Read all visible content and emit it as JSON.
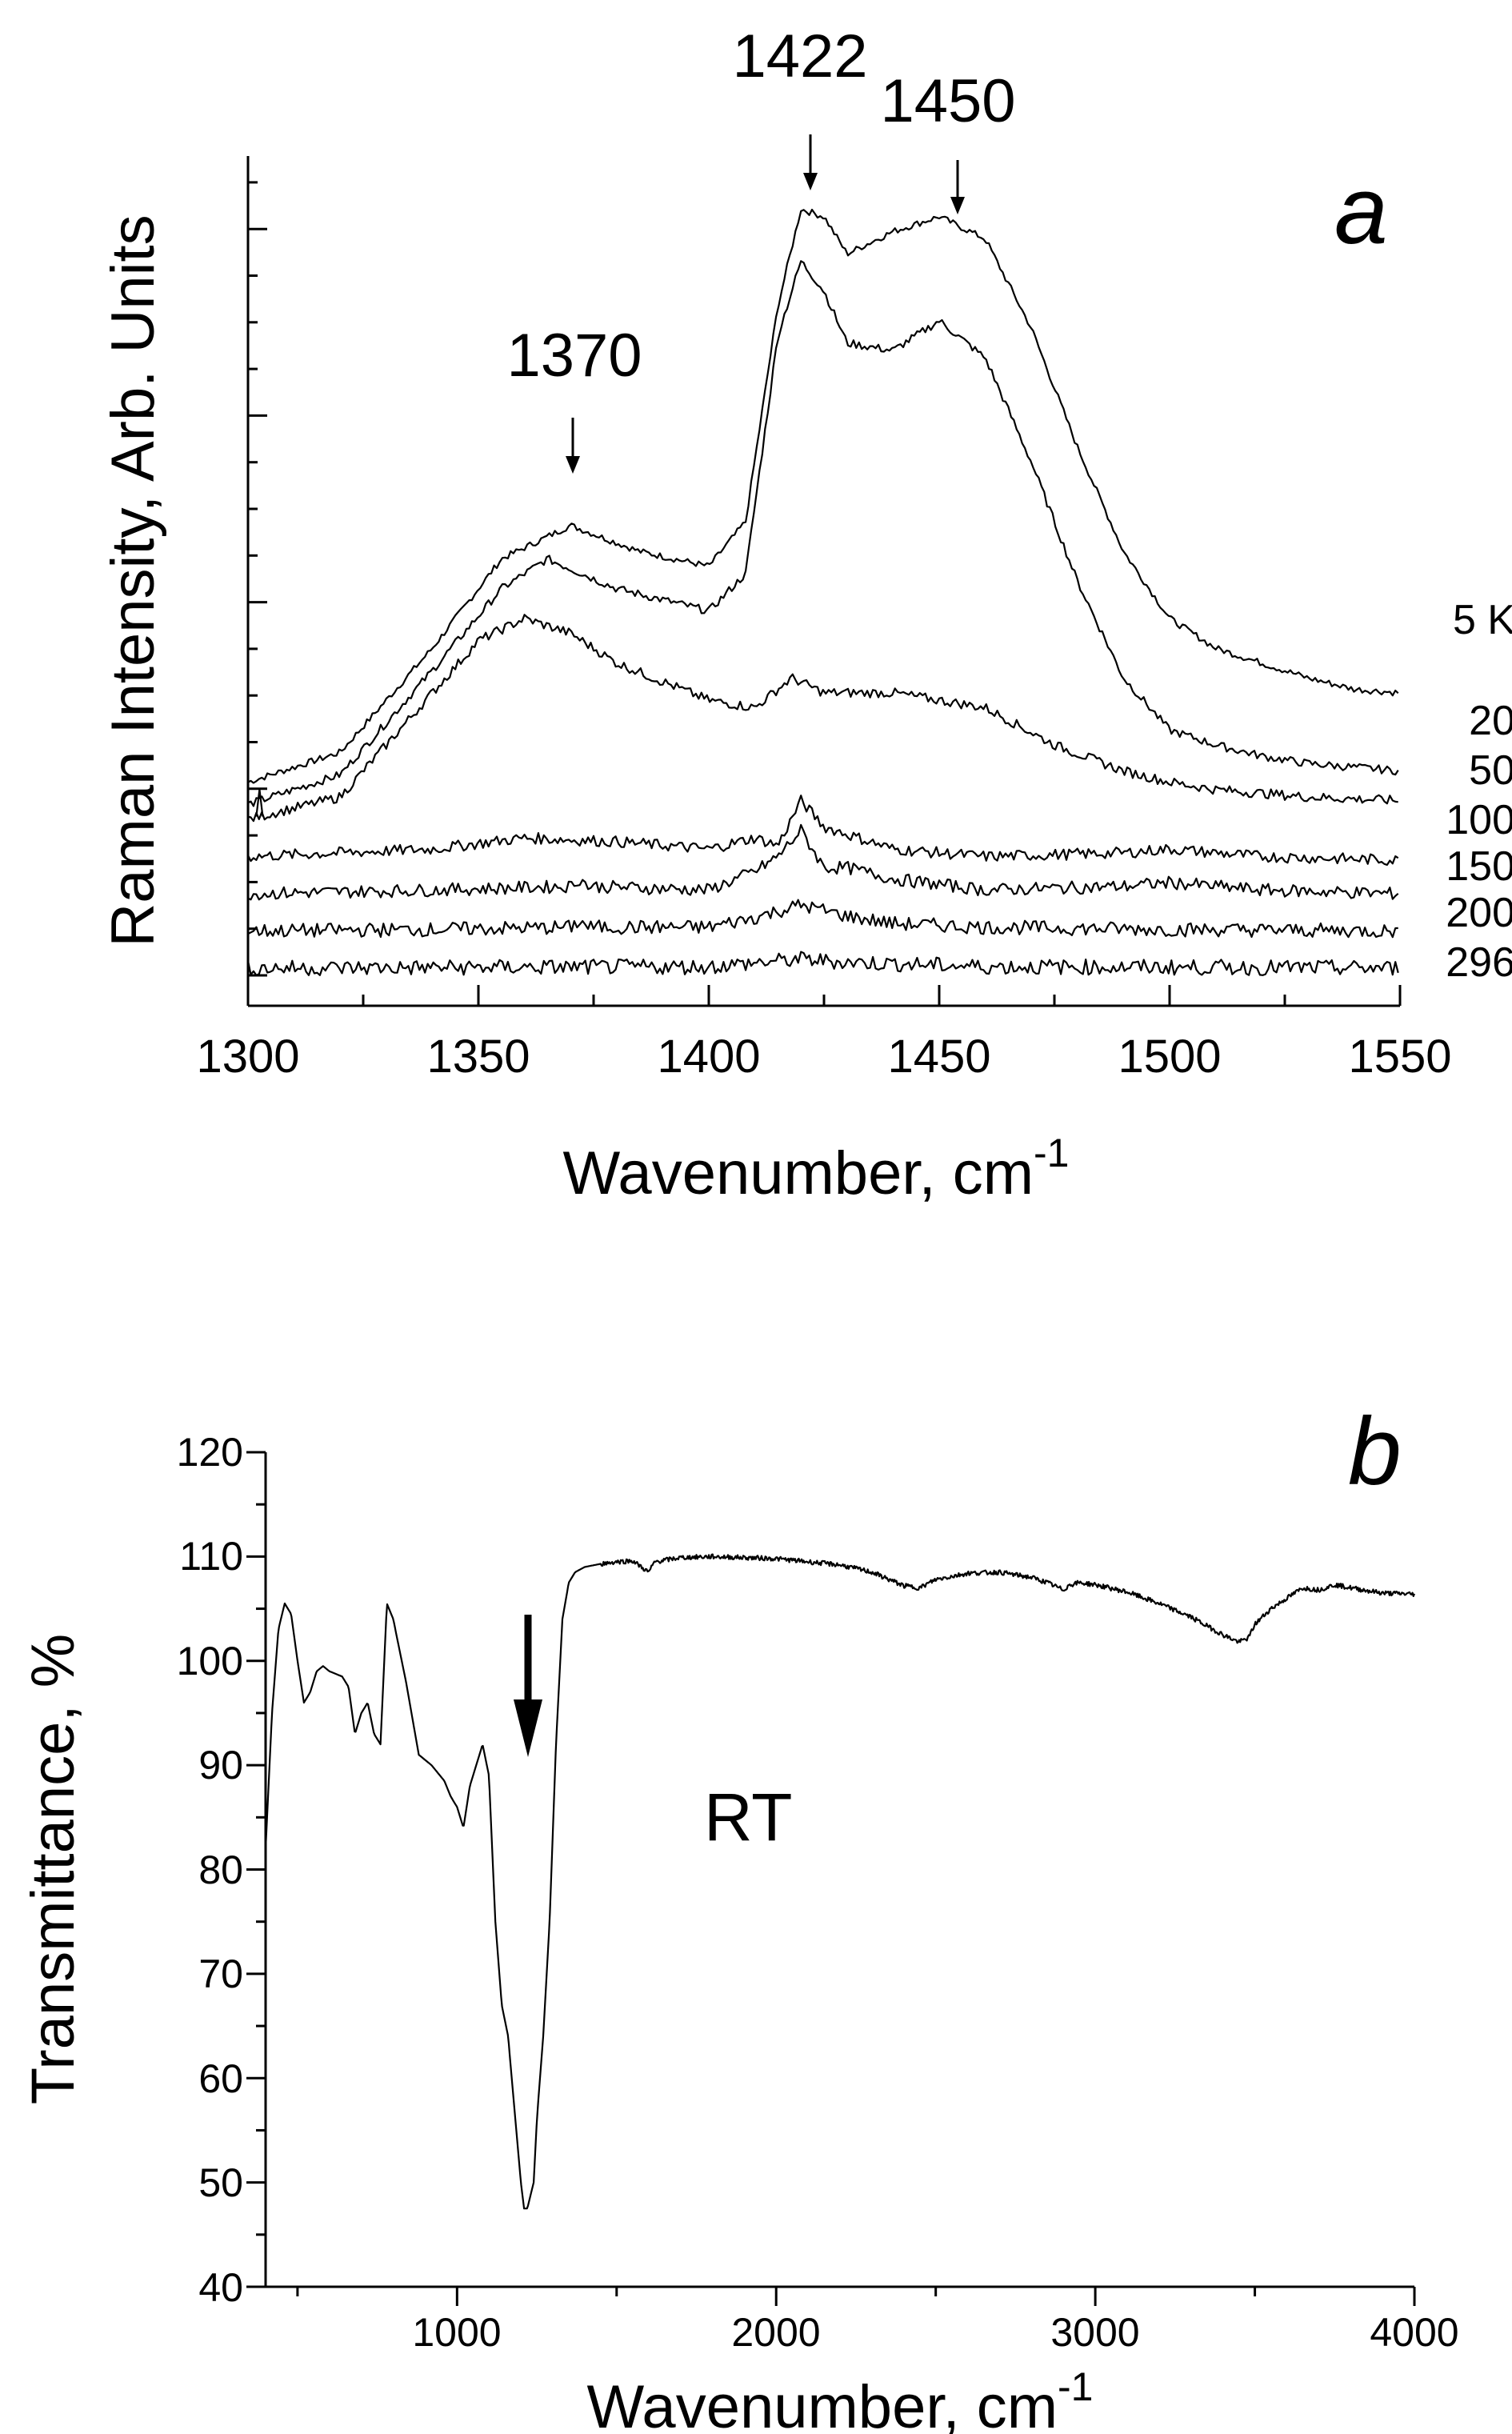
{
  "chart_data": [
    {
      "type": "line",
      "panel": "a",
      "xlabel": "Wavenumber, cm",
      "xlabel_sup": "-1",
      "ylabel": "Raman Intensity, Arb. Units",
      "xlim": [
        1300,
        1550
      ],
      "ylim": [
        0,
        11
      ],
      "xticks": [
        1300,
        1350,
        1400,
        1450,
        1500,
        1550
      ],
      "grid": false,
      "series_legend": [
        "5 K",
        "20",
        "50",
        "100",
        "150",
        "200",
        "296"
      ],
      "peak_annotations": [
        {
          "x": 1370,
          "label": "1370"
        },
        {
          "x": 1422,
          "label": "1422"
        },
        {
          "x": 1450,
          "label": "1450"
        }
      ],
      "series": [
        {
          "name": "5 K",
          "label": "5 K",
          "x": [
            1300,
            1320,
            1340,
            1355,
            1370,
            1385,
            1400,
            1408,
            1415,
            1420,
            1425,
            1430,
            1440,
            1450,
            1460,
            1470,
            1480,
            1490,
            1500,
            1510,
            1520,
            1530,
            1540,
            1550
          ],
          "y": [
            2.5,
            2.9,
            4.3,
            5.5,
            5.95,
            5.6,
            5.4,
            6.0,
            8.9,
            10.2,
            10.1,
            9.6,
            9.9,
            10.1,
            9.8,
            8.6,
            7.0,
            5.6,
            4.7,
            4.3,
            4.1,
            3.9,
            3.75,
            3.7
          ]
        },
        {
          "name": "20",
          "label": "20",
          "x": [
            1300,
            1320,
            1340,
            1355,
            1365,
            1380,
            1400,
            1408,
            1415,
            1420,
            1425,
            1430,
            1440,
            1450,
            1460,
            1470,
            1480,
            1490,
            1500,
            1510,
            1520,
            1530,
            1540,
            1550
          ],
          "y": [
            2.2,
            2.6,
            4.0,
            5.1,
            5.5,
            5.1,
            4.8,
            5.3,
            8.5,
            9.5,
            9.1,
            8.4,
            8.3,
            8.7,
            8.2,
            6.8,
            5.2,
            3.9,
            3.2,
            3.0,
            2.85,
            2.75,
            2.7,
            2.65
          ]
        },
        {
          "name": "50",
          "label": "50",
          "x": [
            1300,
            1320,
            1340,
            1350,
            1360,
            1370,
            1380,
            1400,
            1410,
            1418,
            1425,
            1440,
            1460,
            1475,
            1490,
            1500,
            1510,
            1520,
            1530,
            1550
          ],
          "y": [
            2.0,
            2.3,
            3.7,
            4.4,
            4.7,
            4.5,
            4.1,
            3.6,
            3.5,
            3.9,
            3.7,
            3.7,
            3.5,
            3.0,
            2.65,
            2.5,
            2.4,
            2.35,
            2.3,
            2.25
          ]
        },
        {
          "name": "100",
          "label": "100",
          "x": [
            1300,
            1340,
            1360,
            1380,
            1400,
            1410,
            1415,
            1420,
            1425,
            1430,
            1440,
            1460,
            1490,
            1500,
            1520,
            1550
          ],
          "y": [
            1.5,
            1.6,
            1.75,
            1.7,
            1.6,
            1.75,
            1.65,
            2.25,
            1.9,
            1.8,
            1.6,
            1.5,
            1.55,
            1.6,
            1.5,
            1.45
          ]
        },
        {
          "name": "150",
          "label": "150",
          "x": [
            1300,
            1340,
            1370,
            1372,
            1374,
            1400,
            1410,
            1415,
            1420,
            1425,
            1430,
            1440,
            1460,
            1490,
            1500,
            1520,
            1550
          ],
          "y": [
            1.0,
            1.05,
            1.1,
            1.2,
            1.1,
            1.05,
            1.3,
            1.5,
            1.85,
            1.35,
            1.35,
            1.2,
            1.05,
            1.1,
            1.15,
            1.05,
            1.0
          ]
        },
        {
          "name": "200",
          "label": "200",
          "x": [
            1300,
            1340,
            1370,
            1372,
            1374,
            1400,
            1410,
            1420,
            1430,
            1440,
            1460,
            1500,
            1550
          ],
          "y": [
            0.5,
            0.52,
            0.55,
            0.63,
            0.55,
            0.55,
            0.68,
            0.85,
            0.7,
            0.6,
            0.55,
            0.52,
            0.5
          ]
        },
        {
          "name": "296",
          "label": "296",
          "x": [
            1300,
            1400,
            1410,
            1420,
            1430,
            1440,
            1460,
            1550
          ],
          "y": [
            0.0,
            0.02,
            0.07,
            0.12,
            0.08,
            0.06,
            0.02,
            0.0
          ]
        }
      ]
    },
    {
      "type": "line",
      "panel": "b",
      "xlabel": "Wavenumber, cm",
      "xlabel_sup": "-1",
      "ylabel": "Transmittance, %",
      "xlim": [
        400,
        4000
      ],
      "ylim": [
        40,
        120
      ],
      "xticks": [
        1000,
        2000,
        3000,
        4000
      ],
      "yticks": [
        40,
        50,
        60,
        70,
        80,
        90,
        100,
        110,
        120
      ],
      "grid": false,
      "annotation": "RT",
      "arrow_at_x": 1230,
      "series": [
        {
          "name": "RT",
          "x": [
            400,
            420,
            440,
            460,
            480,
            500,
            520,
            540,
            560,
            580,
            600,
            640,
            660,
            680,
            700,
            720,
            740,
            760,
            780,
            800,
            840,
            880,
            920,
            960,
            980,
            1000,
            1020,
            1040,
            1060,
            1080,
            1100,
            1120,
            1140,
            1160,
            1180,
            1200,
            1210,
            1220,
            1240,
            1250,
            1270,
            1290,
            1310,
            1330,
            1350,
            1370,
            1400,
            1450,
            1500,
            1550,
            1600,
            1620,
            1700,
            1800,
            2000,
            2200,
            2300,
            2400,
            2450,
            2500,
            2600,
            2700,
            2800,
            2850,
            2900,
            2920,
            2950,
            3000,
            3100,
            3200,
            3300,
            3400,
            3450,
            3480,
            3500,
            3550,
            3600,
            3650,
            3700,
            3750,
            3800,
            3900,
            4000
          ],
          "y": [
            82,
            95,
            103,
            105.5,
            104.5,
            100,
            96,
            97,
            99,
            99.5,
            99,
            98.5,
            97.5,
            93,
            95,
            96,
            93,
            92,
            105.5,
            104,
            98,
            91,
            90,
            88.5,
            87,
            86,
            84,
            88,
            90,
            92,
            89,
            75,
            67,
            64,
            57,
            50,
            47.5,
            47.5,
            50,
            56,
            64,
            75,
            92,
            104,
            107.5,
            108.5,
            109,
            109.3,
            109.5,
            109.6,
            108.5,
            109.5,
            109.9,
            110,
            109.8,
            109.2,
            108.5,
            107.2,
            107,
            107.8,
            108.4,
            108.5,
            108,
            107.5,
            106.8,
            107.3,
            107.5,
            107.3,
            106.6,
            105.5,
            104.2,
            102.5,
            101.8,
            102.2,
            103.5,
            105,
            106,
            107,
            106.8,
            107.3,
            107,
            106.5,
            106.4
          ]
        }
      ]
    }
  ],
  "panel_a": {
    "letter": "a",
    "xlabel": "Wavenumber, cm",
    "xlabel_sup": "-1",
    "ylabel": "Raman Intensity, Arb. Units",
    "xtick_labels": [
      "1300",
      "1350",
      "1400",
      "1450",
      "1500",
      "1550"
    ],
    "peak_1370": "1370",
    "peak_1422": "1422",
    "peak_1450": "1450"
  },
  "panel_b": {
    "letter": "b",
    "xlabel": "Wavenumber, cm",
    "xlabel_sup": "-1",
    "ylabel": "Transmittance, %",
    "annotation": "RT",
    "xtick_labels": [
      "1000",
      "2000",
      "3000",
      "4000"
    ],
    "ytick_labels": [
      "40",
      "50",
      "60",
      "70",
      "80",
      "90",
      "100",
      "110",
      "120"
    ]
  }
}
